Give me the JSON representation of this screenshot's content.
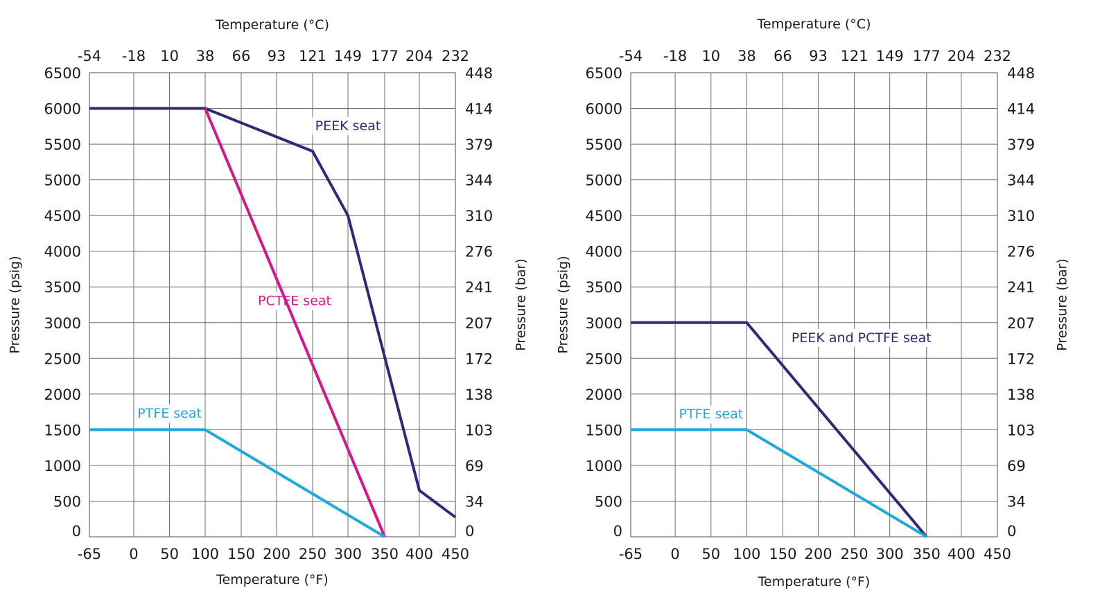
{
  "chart_data": [
    {
      "type": "line",
      "title": "",
      "xlabel": "Temperature (°F)",
      "x2label": "Temperature (°C)",
      "ylabel": "Pressure (psig)",
      "y2label": "Pressure (bar)",
      "x_ticks": [
        -65,
        0,
        50,
        100,
        150,
        200,
        250,
        300,
        350,
        400,
        450
      ],
      "x2_ticks": [
        "-54",
        "-18",
        "10",
        "38",
        "66",
        "93",
        "121",
        "149",
        "177",
        "204",
        "232"
      ],
      "y_ticks": [
        0,
        500,
        1000,
        1500,
        2000,
        2500,
        3000,
        3500,
        4000,
        4500,
        5000,
        5500,
        6000,
        6500
      ],
      "y2_ticks": [
        "0",
        "34",
        "69",
        "103",
        "138",
        "172",
        "207",
        "241",
        "276",
        "310",
        "344",
        "379",
        "414",
        "448"
      ],
      "xlim": [
        -65,
        450
      ],
      "ylim": [
        0,
        6500
      ],
      "grid": true,
      "series": [
        {
          "name": "PEEK seat",
          "color": "#2e2a7a",
          "x": [
            -65,
            100,
            250,
            300,
            400,
            450
          ],
          "y": [
            6000,
            6000,
            5400,
            4500,
            650,
            275
          ]
        },
        {
          "name": "PCTFE seat",
          "color": "#d6158a",
          "x": [
            100,
            350
          ],
          "y": [
            6000,
            0
          ]
        },
        {
          "name": "PTFE seat",
          "color": "#1fa8de",
          "x": [
            -65,
            100,
            350
          ],
          "y": [
            1500,
            1500,
            0
          ]
        }
      ],
      "annotations": [
        {
          "text": "PEEK seat",
          "series": "PEEK seat",
          "x": 300,
          "y": 5750
        },
        {
          "text": "PCTFE seat",
          "series": "PCTFE seat",
          "x": 225,
          "y": 3300
        },
        {
          "text": "PTFE seat",
          "series": "PTFE seat",
          "x": 50,
          "y": 1720
        }
      ]
    },
    {
      "type": "line",
      "title": "",
      "xlabel": "Temperature (°F)",
      "x2label": "Temperature (°C)",
      "ylabel": "Pressure (psig)",
      "y2label": "Pressure (bar)",
      "x_ticks": [
        -65,
        0,
        50,
        100,
        150,
        200,
        250,
        300,
        350,
        400,
        450
      ],
      "x2_ticks": [
        "-54",
        "-18",
        "10",
        "38",
        "66",
        "93",
        "121",
        "149",
        "177",
        "204",
        "232"
      ],
      "y_ticks": [
        0,
        500,
        1000,
        1500,
        2000,
        2500,
        3000,
        3500,
        4000,
        4500,
        5000,
        5500,
        6000,
        6500
      ],
      "y2_ticks": [
        "0",
        "34",
        "69",
        "103",
        "138",
        "172",
        "207",
        "241",
        "276",
        "310",
        "344",
        "379",
        "414",
        "448"
      ],
      "xlim": [
        -65,
        450
      ],
      "ylim": [
        0,
        6500
      ],
      "grid": true,
      "series": [
        {
          "name": "PEEK and PCTFE seat",
          "color": "#2e2a7a",
          "x": [
            -65,
            100,
            350
          ],
          "y": [
            3000,
            3000,
            0
          ]
        },
        {
          "name": "PTFE seat",
          "color": "#1fa8de",
          "x": [
            -65,
            100,
            350
          ],
          "y": [
            1500,
            1500,
            0
          ]
        }
      ],
      "annotations": [
        {
          "text": "PEEK and PCTFE seat",
          "series": "PEEK and PCTFE seat",
          "x": 260,
          "y": 2780
        },
        {
          "text": "PTFE seat",
          "series": "PTFE seat",
          "x": 50,
          "y": 1710
        }
      ]
    }
  ]
}
